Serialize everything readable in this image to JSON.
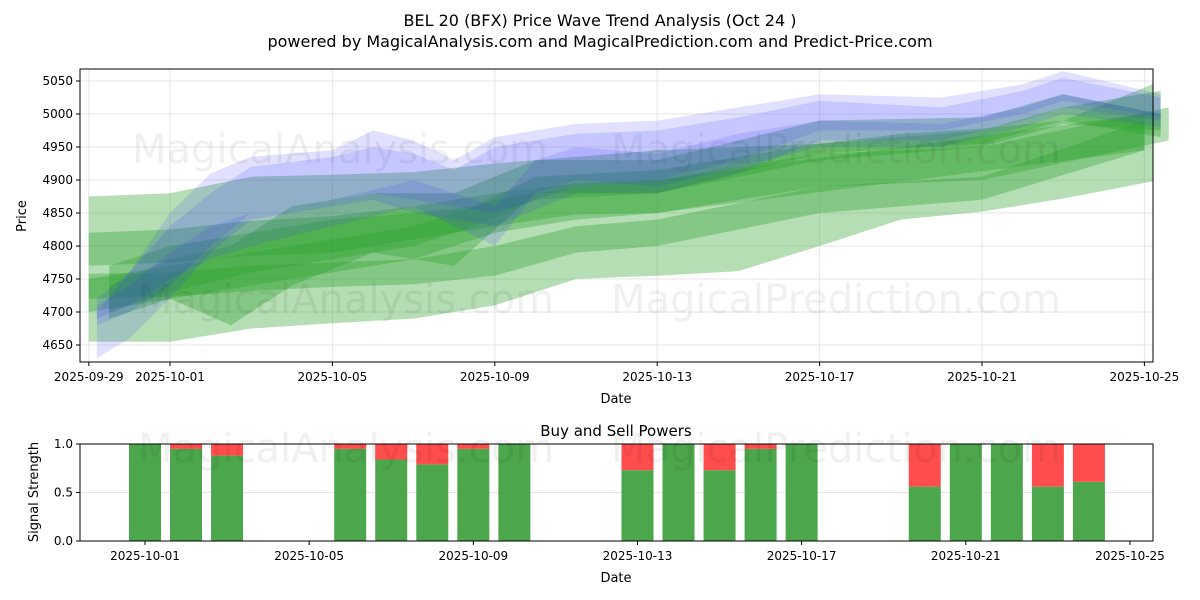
{
  "chart_data": [
    {
      "type": "area",
      "title": "BEL 20 (BFX) Price Wave Trend Analysis (Oct 24 )",
      "subtitle": "powered by MagicalAnalysis.com and MagicalPrediction.com and Predict-Price.com",
      "xlabel": "Date",
      "ylabel": "Price",
      "xlim": [
        "2025-09-28.8",
        "2025-10-25.2"
      ],
      "ylim": [
        4625,
        5068
      ],
      "grid": true,
      "x_ticks": [
        "2025-09-29",
        "2025-10-01",
        "2025-10-05",
        "2025-10-09",
        "2025-10-13",
        "2025-10-17",
        "2025-10-21",
        "2025-10-25"
      ],
      "y_ticks": [
        4650,
        4700,
        4750,
        4800,
        4850,
        4900,
        4950,
        5000,
        5050
      ],
      "colors": {
        "green": "#2ca02c",
        "blue": "#3333ff"
      },
      "green_bands": [
        {
          "x": [
            -2,
            0,
            2,
            4,
            6,
            8,
            10,
            12,
            14,
            16,
            18,
            20,
            22,
            24.2
          ],
          "lo": [
            4655,
            4655,
            4675,
            4683,
            4690,
            4710,
            4750,
            4755,
            4762,
            4800,
            4840,
            4852,
            4872,
            4898
          ],
          "hi": [
            4875,
            4880,
            4905,
            4908,
            4912,
            4925,
            4935,
            4945,
            4950,
            4955,
            4970,
            4978,
            4990,
            5045
          ]
        },
        {
          "x": [
            -2,
            0,
            2,
            4,
            6,
            8,
            10,
            12,
            24
          ],
          "lo": [
            4770,
            4775,
            4785,
            4790,
            4810,
            4830,
            4848,
            4850,
            4945
          ],
          "hi": [
            4820,
            4825,
            4838,
            4845,
            4860,
            4880,
            4895,
            4900,
            5000
          ]
        },
        {
          "x": [
            -2,
            0,
            2,
            4,
            6,
            8,
            10,
            12,
            16,
            20,
            24
          ],
          "lo": [
            4720,
            4723,
            4732,
            4738,
            4742,
            4755,
            4790,
            4800,
            4850,
            4870,
            4945
          ],
          "hi": [
            4758,
            4760,
            4770,
            4775,
            4780,
            4800,
            4830,
            4840,
            4890,
            4905,
            4990
          ]
        },
        {
          "x": [
            -2,
            0,
            2,
            4,
            6,
            8,
            10,
            12,
            16,
            20,
            24.6
          ],
          "lo": [
            4700,
            4720,
            4740,
            4760,
            4780,
            4820,
            4840,
            4850,
            4890,
            4900,
            4960
          ]
        },
        {
          "x": [
            -1.5,
            0,
            1.5,
            3,
            5,
            7,
            9,
            12,
            16,
            20,
            22,
            24.4
          ],
          "lo": [
            4690,
            4720,
            4680,
            4740,
            4790,
            4770,
            4880,
            4880,
            4940,
            4955,
            4990,
            4965
          ],
          "hi": [
            4740,
            4780,
            4800,
            4860,
            4880,
            4880,
            4930,
            4930,
            4990,
            4995,
            5030,
            5000
          ]
        },
        {
          "x": [
            -1.5,
            0,
            2,
            4,
            6,
            7.5,
            9,
            12,
            16,
            20,
            22,
            24.4
          ],
          "lo": [
            4700,
            4730,
            4760,
            4780,
            4800,
            4830,
            4870,
            4880,
            4930,
            4950,
            4985,
            4975
          ],
          "hi": [
            4770,
            4800,
            4820,
            4840,
            4850,
            4860,
            4905,
            4915,
            4955,
            4975,
            5010,
            5035
          ]
        }
      ],
      "blue_bands": [
        {
          "x": [
            -1.8,
            -1,
            0,
            1,
            2,
            4,
            5,
            6,
            7,
            8,
            10,
            12,
            14,
            16,
            19,
            21,
            22,
            24.4
          ],
          "lo": [
            4630,
            4660,
            4720,
            4790,
            4840,
            4860,
            4870,
            4850,
            4840,
            4830,
            4880,
            4880,
            4910,
            4960,
            4960,
            4990,
            5010,
            4990
          ],
          "hi": [
            4700,
            4760,
            4850,
            4910,
            4935,
            4945,
            4975,
            4960,
            4930,
            4965,
            4985,
            4990,
            5010,
            5030,
            5025,
            5045,
            5065,
            5030
          ]
        },
        {
          "x": [
            -1.8,
            -1,
            0,
            1,
            2,
            4,
            5,
            6,
            7,
            8,
            10,
            12,
            14,
            16,
            19,
            21,
            22,
            24.4
          ],
          "lo": [
            4680,
            4700,
            4740,
            4800,
            4850,
            4870,
            4880,
            4870,
            4860,
            4850,
            4890,
            4900,
            4930,
            4975,
            4975,
            5000,
            5020,
            4995
          ],
          "hi": [
            4720,
            4760,
            4830,
            4880,
            4920,
            4935,
            4950,
            4940,
            4915,
            4950,
            4970,
            4975,
            4995,
            5020,
            5010,
            5035,
            5055,
            5025
          ]
        },
        {
          "x": [
            -1.8,
            -1,
            0,
            1,
            2,
            4,
            6,
            8,
            9,
            10,
            12,
            14,
            16,
            19,
            21,
            22,
            24.4
          ],
          "lo": [
            4690,
            4710,
            4750,
            4780,
            4800,
            4830,
            4860,
            4800,
            4880,
            4900,
            4890,
            4920,
            4950,
            4950,
            4980,
            5000,
            4980
          ],
          "hi": [
            4710,
            4740,
            4790,
            4830,
            4850,
            4870,
            4900,
            4860,
            4930,
            4950,
            4940,
            4970,
            4990,
            4985,
            5010,
            5030,
            5000
          ]
        }
      ]
    },
    {
      "type": "bar",
      "title": "Buy and Sell Powers",
      "xlabel": "Date",
      "ylabel": "Signal Strength",
      "ylim": [
        0,
        1
      ],
      "y_ticks": [
        "0.0",
        "0.5",
        "1.0"
      ],
      "x_ticks": [
        "2025-10-01",
        "2025-10-05",
        "2025-10-09",
        "2025-10-13",
        "2025-10-17",
        "2025-10-21",
        "2025-10-25"
      ],
      "colors": {
        "buy": "#4ca64c",
        "sell": "#ff4d4d"
      },
      "dates": [
        "2025-10-01",
        "2025-10-02",
        "2025-10-03",
        "2025-10-06",
        "2025-10-07",
        "2025-10-08",
        "2025-10-09",
        "2025-10-10",
        "2025-10-13",
        "2025-10-14",
        "2025-10-15",
        "2025-10-16",
        "2025-10-17",
        "2025-10-20",
        "2025-10-21",
        "2025-10-22",
        "2025-10-23",
        "2025-10-24"
      ],
      "buy": [
        1.0,
        0.95,
        0.88,
        0.95,
        0.84,
        0.79,
        0.95,
        1.0,
        0.73,
        1.0,
        0.73,
        0.95,
        1.0,
        0.56,
        1.0,
        1.0,
        0.56,
        0.61
      ]
    }
  ],
  "watermarks": [
    "MagicalAnalysis.com",
    "MagicalPrediction.com"
  ]
}
